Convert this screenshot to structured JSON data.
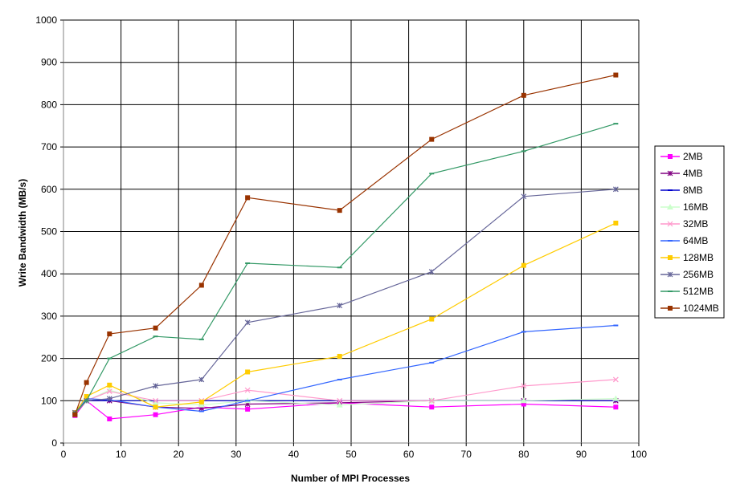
{
  "chart_data": {
    "type": "line",
    "title": "",
    "xlabel": "Number of MPI Processes",
    "ylabel": "Write Bandwidth (MB/s)",
    "xlim": [
      0,
      100
    ],
    "ylim": [
      0,
      1000
    ],
    "x_ticks": [
      0,
      10,
      20,
      30,
      40,
      50,
      60,
      70,
      80,
      90,
      100
    ],
    "y_ticks": [
      0,
      100,
      200,
      300,
      400,
      500,
      600,
      700,
      800,
      900,
      1000
    ],
    "grid": true,
    "legend_position": "right",
    "x": [
      2,
      4,
      8,
      16,
      24,
      32,
      48,
      64,
      80,
      96
    ],
    "series": [
      {
        "name": "2MB",
        "color": "#ff00ff",
        "marker": "square",
        "values": [
          65,
          100,
          57,
          67,
          85,
          80,
          95,
          85,
          92,
          85
        ]
      },
      {
        "name": "4MB",
        "color": "#800080",
        "marker": "star",
        "values": [
          68,
          100,
          100,
          85,
          82,
          92,
          95,
          100,
          100,
          100
        ]
      },
      {
        "name": "8MB",
        "color": "#0000cc",
        "marker": "dash",
        "values": [
          70,
          100,
          100,
          100,
          100,
          100,
          100,
          100,
          100,
          100
        ]
      },
      {
        "name": "16MB",
        "color": "#ccffcc",
        "marker": "triangle",
        "values": [
          70,
          100,
          125,
          95,
          90,
          100,
          90,
          100,
          100,
          105
        ]
      },
      {
        "name": "32MB",
        "color": "#ff99cc",
        "marker": "x",
        "values": [
          70,
          100,
          122,
          100,
          100,
          125,
          100,
          100,
          135,
          150
        ]
      },
      {
        "name": "64MB",
        "color": "#3366ff",
        "marker": "dash",
        "values": [
          70,
          105,
          102,
          85,
          75,
          100,
          150,
          190,
          263,
          278
        ]
      },
      {
        "name": "128MB",
        "color": "#ffcc00",
        "marker": "square",
        "values": [
          72,
          110,
          137,
          85,
          97,
          168,
          205,
          293,
          420,
          520
        ]
      },
      {
        "name": "256MB",
        "color": "#666699",
        "marker": "star",
        "values": [
          72,
          100,
          105,
          135,
          150,
          285,
          325,
          405,
          583,
          600
        ]
      },
      {
        "name": "512MB",
        "color": "#339966",
        "marker": "dash",
        "values": [
          72,
          100,
          200,
          252,
          245,
          425,
          415,
          637,
          690,
          755
        ]
      },
      {
        "name": "1024MB",
        "color": "#993300",
        "marker": "square",
        "values": [
          67,
          143,
          258,
          272,
          373,
          580,
          550,
          718,
          822,
          870
        ]
      }
    ]
  }
}
